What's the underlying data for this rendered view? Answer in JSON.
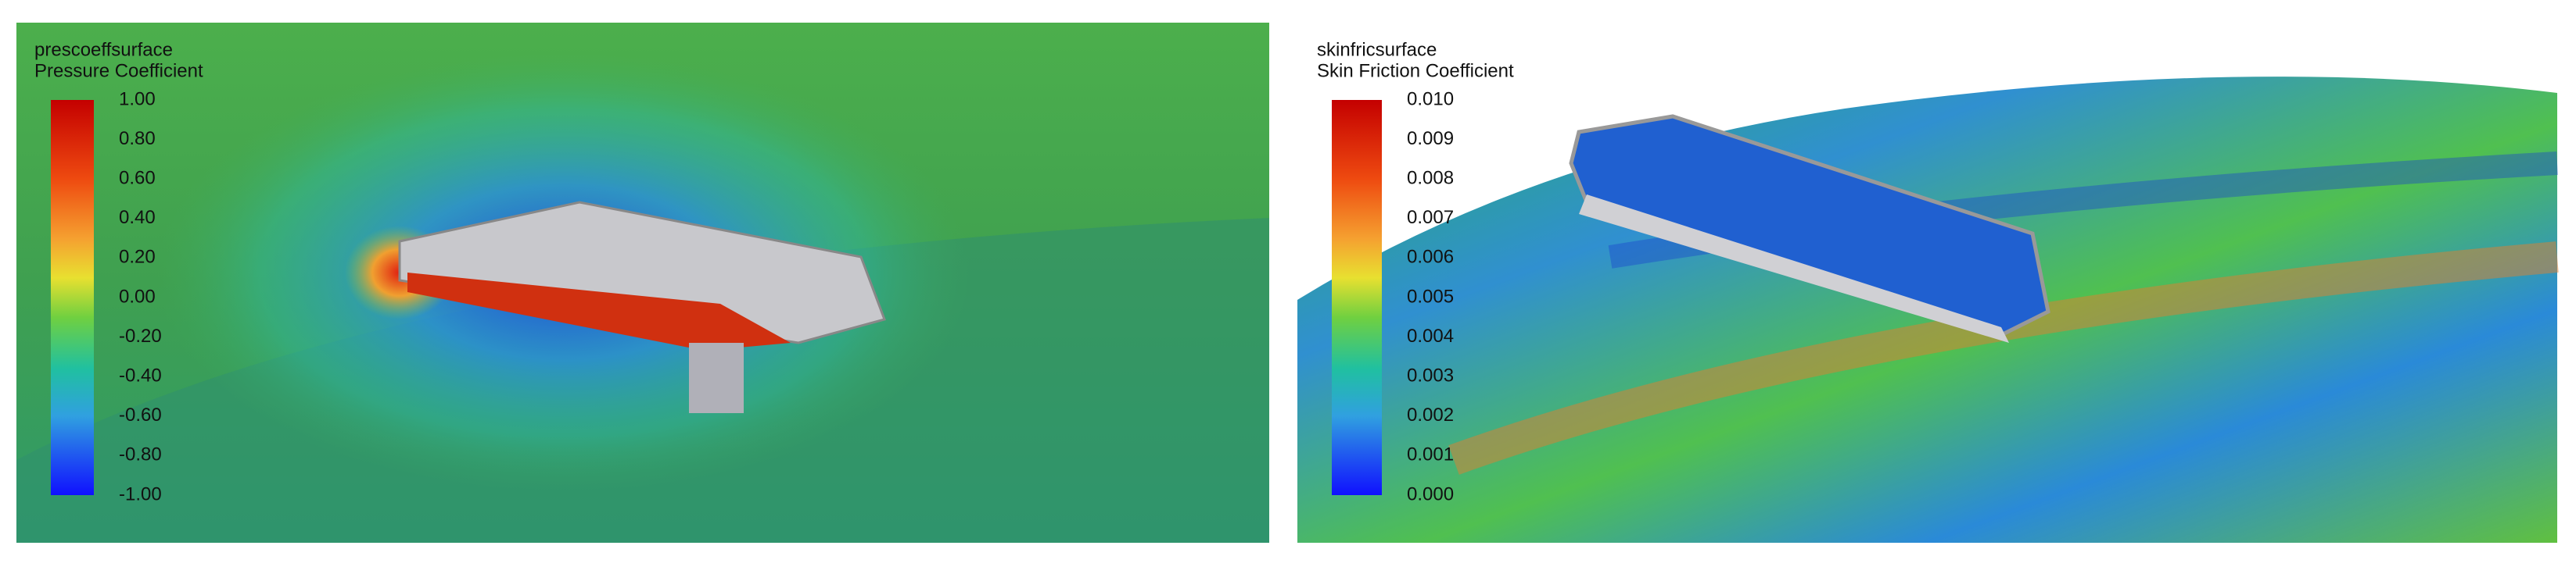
{
  "panels": [
    {
      "title": "prescoeffsurface",
      "subtitle": "Pressure Coefficient",
      "ticks": [
        "1.00",
        "0.80",
        "0.60",
        "0.40",
        "0.20",
        "0.00",
        "-0.20",
        "-0.40",
        "-0.60",
        "-0.80",
        "-1.00"
      ]
    },
    {
      "title": "skinfricsurface",
      "subtitle": "Skin Friction Coefficient",
      "ticks": [
        "0.010",
        "0.009",
        "0.008",
        "0.007",
        "0.006",
        "0.005",
        "0.004",
        "0.003",
        "0.002",
        "0.001",
        "0.000"
      ]
    }
  ]
}
